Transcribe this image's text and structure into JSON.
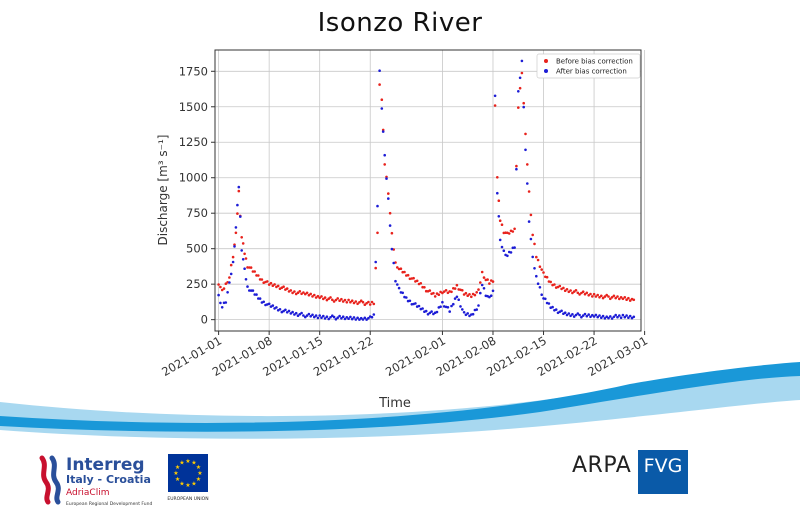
{
  "title": "Isonzo River",
  "chart_data": {
    "type": "scatter",
    "title": "Isonzo River",
    "xlabel": "Time",
    "ylabel": "Discharge [m³ s⁻¹]",
    "x_start": "2021-01-01",
    "x_range_days": [
      -0.5,
      58.5
    ],
    "ylim": [
      -80,
      1900
    ],
    "yticks": [
      0,
      250,
      500,
      750,
      1000,
      1250,
      1500,
      1750
    ],
    "xticks": [
      {
        "day": 0,
        "label": "2021-01-01"
      },
      {
        "day": 7,
        "label": "2021-01-08"
      },
      {
        "day": 14,
        "label": "2021-01-15"
      },
      {
        "day": 21,
        "label": "2021-01-22"
      },
      {
        "day": 31,
        "label": "2021-02-01"
      },
      {
        "day": 38,
        "label": "2021-02-08"
      },
      {
        "day": 45,
        "label": "2021-02-15"
      },
      {
        "day": 52,
        "label": "2021-02-22"
      },
      {
        "day": 59,
        "label": "2021-03-01"
      }
    ],
    "grid": true,
    "legend_position": "top-right",
    "series": [
      {
        "name": "Before bias correction",
        "color": "#e8221c",
        "days": [
          0,
          0.5,
          1,
          1.5,
          2,
          2.4,
          2.8,
          3.2,
          3.6,
          4,
          5,
          6,
          7,
          8,
          9,
          10,
          12,
          14,
          16,
          18,
          20,
          21,
          21.5,
          22,
          22.3,
          22.6,
          23,
          23.5,
          24,
          24.5,
          25,
          26,
          27,
          28,
          29,
          30,
          31,
          32,
          33,
          34,
          35,
          36,
          36.5,
          37,
          37.5,
          38,
          38.3,
          38.6,
          39,
          39.5,
          40,
          40.5,
          41,
          41.5,
          42,
          42.5,
          43,
          43.5,
          44,
          45,
          46,
          47,
          48,
          50,
          52,
          54,
          56,
          57.5
        ],
        "values": [
          260,
          200,
          250,
          300,
          450,
          600,
          900,
          580,
          470,
          380,
          330,
          280,
          250,
          240,
          220,
          200,
          180,
          160,
          140,
          130,
          120,
          110,
          120,
          600,
          1650,
          1550,
          1100,
          900,
          600,
          400,
          360,
          320,
          280,
          250,
          200,
          170,
          200,
          190,
          240,
          180,
          170,
          200,
          330,
          280,
          260,
          280,
          1500,
          1000,
          700,
          620,
          600,
          620,
          640,
          1500,
          1750,
          1300,
          900,
          600,
          450,
          320,
          260,
          230,
          210,
          190,
          170,
          160,
          150,
          140
        ],
        "point_radius": 1.3
      },
      {
        "name": "After bias correction",
        "color": "#1d1dd6",
        "days": [
          0,
          0.5,
          1,
          1.5,
          2,
          2.4,
          2.8,
          3.2,
          3.6,
          4,
          5,
          6,
          7,
          8,
          9,
          10,
          12,
          14,
          16,
          18,
          20,
          21,
          21.5,
          22,
          22.3,
          22.6,
          23,
          23.5,
          24,
          24.5,
          25,
          26,
          27,
          28,
          29,
          30,
          31,
          32,
          33,
          34,
          35,
          36,
          36.5,
          37,
          37.5,
          38,
          38.3,
          38.6,
          39,
          39.5,
          40,
          40.5,
          41,
          41.5,
          42,
          42.5,
          43,
          43.5,
          44,
          45,
          46,
          47,
          48,
          50,
          52,
          54,
          56,
          57.5
        ],
        "values": [
          170,
          90,
          130,
          250,
          400,
          650,
          940,
          500,
          350,
          230,
          180,
          130,
          100,
          80,
          60,
          50,
          30,
          20,
          15,
          10,
          10,
          10,
          30,
          800,
          1760,
          1500,
          1150,
          850,
          500,
          280,
          210,
          150,
          110,
          80,
          50,
          40,
          120,
          60,
          170,
          40,
          30,
          100,
          250,
          180,
          150,
          200,
          1580,
          900,
          550,
          480,
          450,
          480,
          520,
          1600,
          1820,
          1200,
          700,
          430,
          300,
          150,
          90,
          60,
          40,
          30,
          25,
          20,
          20,
          20
        ],
        "point_radius": 1.3
      }
    ]
  },
  "footer": {
    "interreg_name": "Interreg",
    "interreg_program": "Italy - Croatia",
    "interreg_project": "AdriaClim",
    "interreg_fund": "European Regional Development Fund",
    "eu_label": "EUROPEAN UNION",
    "arpa_text": "ARPA",
    "fvg_text": "FVG"
  },
  "colors": {
    "wave_dark": "#1a98d8",
    "wave_light": "#a8d8f0",
    "arpa_blue": "#0a5aa8",
    "eu_blue": "#003399",
    "eu_star": "#ffcc00",
    "interreg_blue": "#2a4f9a",
    "interreg_red": "#c8102e"
  }
}
